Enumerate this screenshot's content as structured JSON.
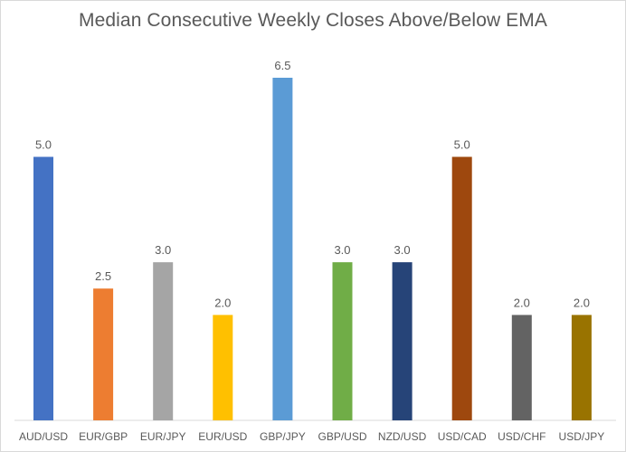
{
  "chart_data": {
    "type": "bar",
    "title": "Median Consecutive Weekly Closes Above/Below EMA",
    "xlabel": "",
    "ylabel": "",
    "categories": [
      "AUD/USD",
      "EUR/GBP",
      "EUR/JPY",
      "EUR/USD",
      "GBP/JPY",
      "GBP/USD",
      "NZD/USD",
      "USD/CAD",
      "USD/CHF",
      "USD/JPY"
    ],
    "values": [
      5.0,
      2.5,
      3.0,
      2.0,
      6.5,
      3.0,
      3.0,
      5.0,
      2.0,
      2.0
    ],
    "data_labels": [
      "5.0",
      "2.5",
      "3.0",
      "2.0",
      "6.5",
      "3.0",
      "3.0",
      "5.0",
      "2.0",
      "2.0"
    ],
    "bar_colors": [
      "#4472c4",
      "#ed7d31",
      "#a5a5a5",
      "#ffc000",
      "#5b9bd5",
      "#70ad47",
      "#264478",
      "#9e480e",
      "#636363",
      "#997300"
    ],
    "ylim": [
      0,
      6.5
    ],
    "grid": false,
    "legend": "none"
  }
}
